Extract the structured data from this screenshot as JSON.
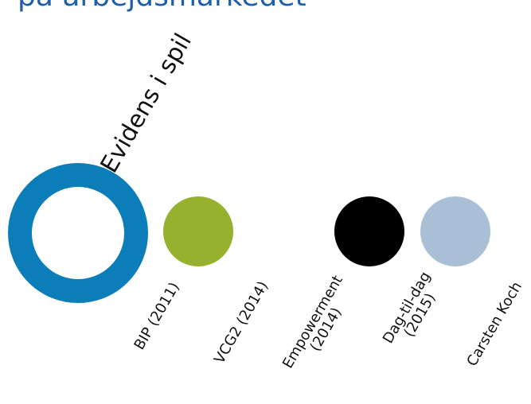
{
  "title": "på arbejdsmarkedet",
  "evidence_label": "Evidens i spil",
  "items": [
    {
      "label": "BIP (2011)",
      "color": "#95b12e"
    },
    {
      "label": "VCG2 (2014)",
      "color": "#95b12e"
    },
    {
      "label_line1": "Empowerment",
      "label_line2": "(2014)",
      "color": "#000000"
    },
    {
      "label_line1": "Dag-til-dag",
      "label_line2": "(2015)",
      "color": "#a9bfd6"
    },
    {
      "label": "Carsten Koch"
    }
  ],
  "colors": {
    "ring": "#0b7db8",
    "title": "#1f5fa8"
  }
}
